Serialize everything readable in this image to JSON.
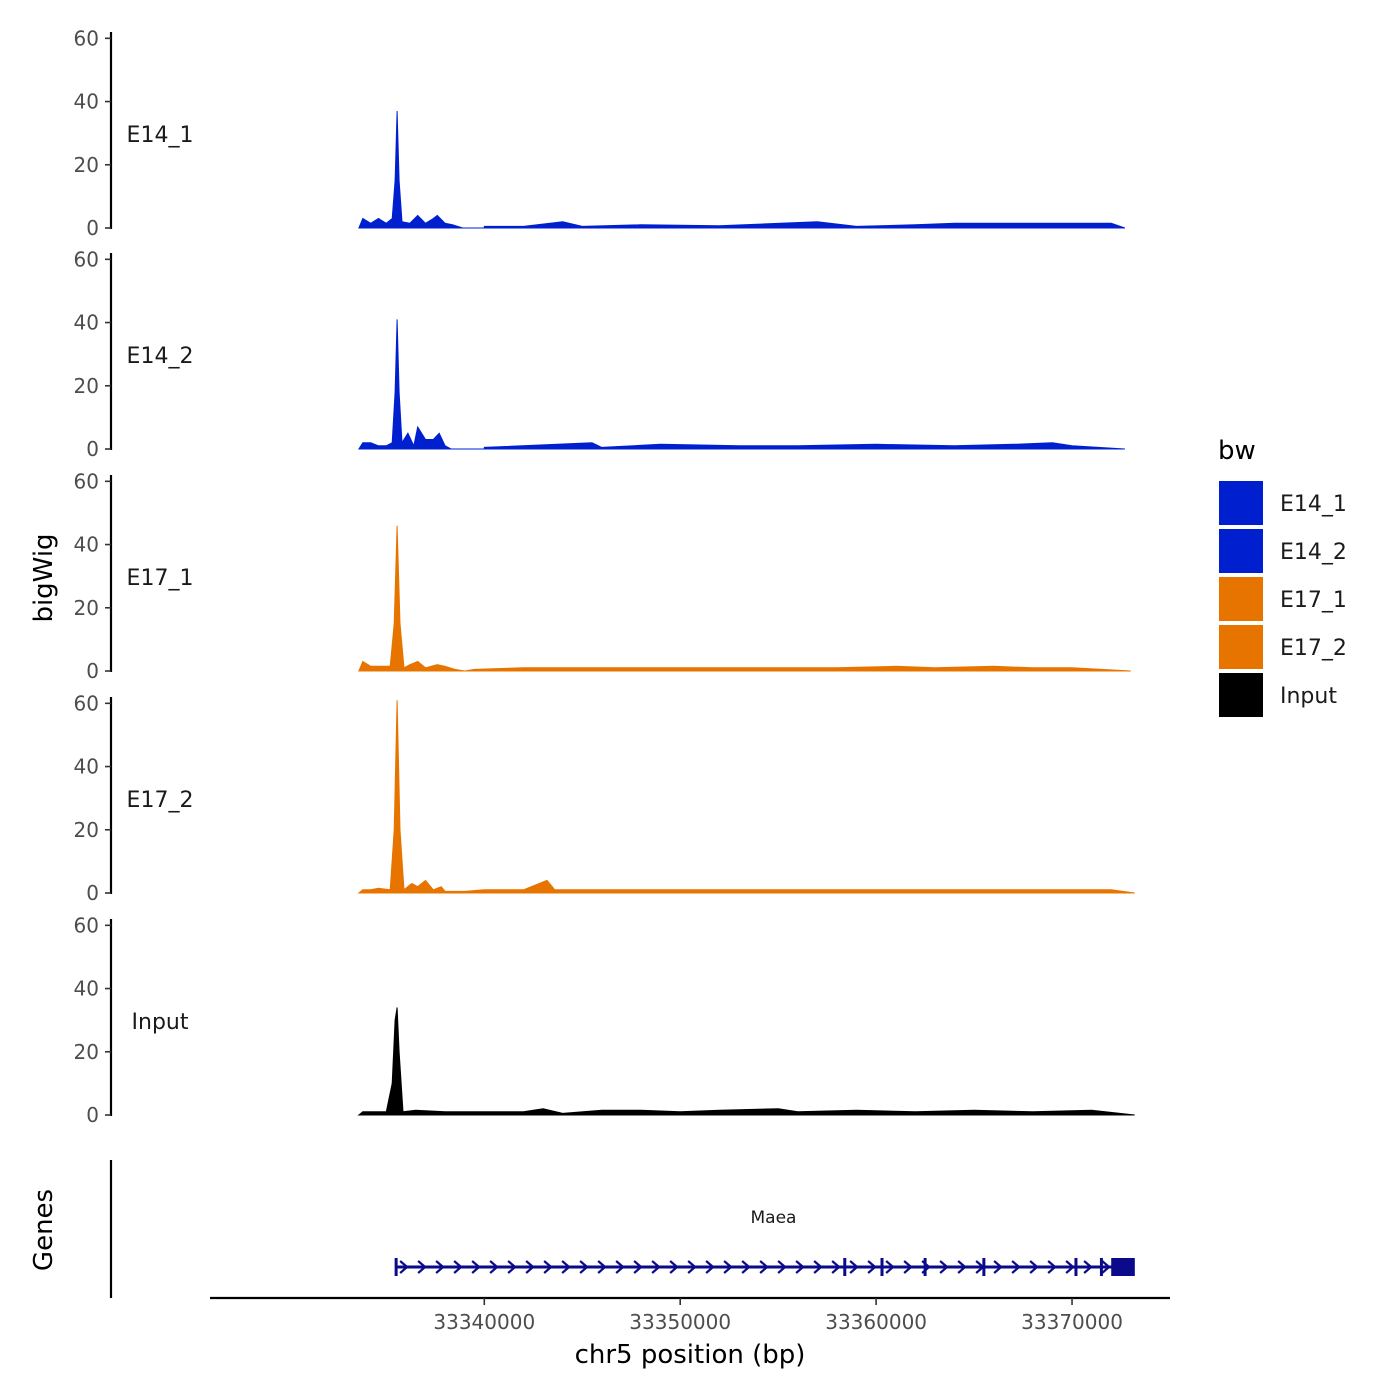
{
  "chart_data": {
    "type": "area",
    "ylabel": "bigWig",
    "xlabel": "chr5 position (bp)",
    "gene_track_label": "Genes",
    "ylim": [
      0,
      62
    ],
    "y_ticks": [
      "0",
      "20",
      "40",
      "60"
    ],
    "xlim": [
      33326000,
      33375000
    ],
    "x_ticks": [
      {
        "value": 33340000,
        "label": "33340000"
      },
      {
        "value": 33350000,
        "label": "33350000"
      },
      {
        "value": 33360000,
        "label": "33360000"
      },
      {
        "value": 33370000,
        "label": "33370000"
      }
    ],
    "legend": {
      "title": "bw",
      "entries": [
        {
          "label": "E14_1",
          "color": "#0020d0"
        },
        {
          "label": "E14_2",
          "color": "#0020d0"
        },
        {
          "label": "E17_1",
          "color": "#e87400"
        },
        {
          "label": "E17_2",
          "color": "#e87400"
        },
        {
          "label": "Input",
          "color": "#000000"
        }
      ]
    },
    "series": [
      {
        "name": "E14_1",
        "color": "#0020d0",
        "points": [
          [
            33333600,
            0
          ],
          [
            33333800,
            3
          ],
          [
            33334200,
            1.5
          ],
          [
            33334600,
            3
          ],
          [
            33335000,
            1.5
          ],
          [
            33335300,
            3
          ],
          [
            33335450,
            15
          ],
          [
            33335550,
            37
          ],
          [
            33335650,
            15
          ],
          [
            33335800,
            2
          ],
          [
            33336200,
            1.5
          ],
          [
            33336600,
            4
          ],
          [
            33337000,
            1.5
          ],
          [
            33337400,
            3
          ],
          [
            33337600,
            4
          ],
          [
            33338000,
            1.5
          ],
          [
            33338400,
            1
          ],
          [
            33338900,
            0
          ],
          [
            33340000,
            0
          ],
          [
            33340000,
            0.5
          ],
          [
            33342000,
            0.5
          ],
          [
            33344000,
            2
          ],
          [
            33345000,
            0.5
          ],
          [
            33348000,
            1
          ],
          [
            33352000,
            0.7
          ],
          [
            33357000,
            2
          ],
          [
            33359000,
            0.5
          ],
          [
            33362000,
            1
          ],
          [
            33364000,
            1.5
          ],
          [
            33368000,
            1.5
          ],
          [
            33371000,
            1.5
          ],
          [
            33372000,
            1.5
          ],
          [
            33372700,
            0
          ]
        ]
      },
      {
        "name": "E14_2",
        "color": "#0020d0",
        "points": [
          [
            33333600,
            0
          ],
          [
            33333800,
            2
          ],
          [
            33334200,
            2
          ],
          [
            33334600,
            1
          ],
          [
            33335000,
            1
          ],
          [
            33335300,
            2
          ],
          [
            33335450,
            18
          ],
          [
            33335550,
            41
          ],
          [
            33335650,
            18
          ],
          [
            33335800,
            2
          ],
          [
            33336100,
            5
          ],
          [
            33336400,
            1
          ],
          [
            33336600,
            7
          ],
          [
            33337000,
            3
          ],
          [
            33337400,
            3
          ],
          [
            33337700,
            5
          ],
          [
            33338000,
            1
          ],
          [
            33338300,
            0
          ],
          [
            33340000,
            0
          ],
          [
            33340000,
            0.5
          ],
          [
            33345500,
            2
          ],
          [
            33346000,
            0.5
          ],
          [
            33349000,
            1.5
          ],
          [
            33353000,
            1
          ],
          [
            33356000,
            1
          ],
          [
            33360000,
            1.5
          ],
          [
            33364000,
            1
          ],
          [
            33367000,
            1.5
          ],
          [
            33369000,
            2
          ],
          [
            33370000,
            1
          ],
          [
            33372700,
            0
          ]
        ]
      },
      {
        "name": "E17_1",
        "color": "#e87400",
        "points": [
          [
            33333600,
            0
          ],
          [
            33333800,
            3
          ],
          [
            33334200,
            1.5
          ],
          [
            33334600,
            1.5
          ],
          [
            33335200,
            1.5
          ],
          [
            33335400,
            15
          ],
          [
            33335550,
            46
          ],
          [
            33335700,
            15
          ],
          [
            33335900,
            1
          ],
          [
            33336200,
            2
          ],
          [
            33336600,
            3
          ],
          [
            33337000,
            1
          ],
          [
            33337600,
            2
          ],
          [
            33338000,
            1.5
          ],
          [
            33338500,
            0.5
          ],
          [
            33339000,
            0
          ],
          [
            33339500,
            0.5
          ],
          [
            33342000,
            1
          ],
          [
            33344000,
            1
          ],
          [
            33347000,
            1
          ],
          [
            33350000,
            1
          ],
          [
            33353000,
            1
          ],
          [
            33355000,
            1
          ],
          [
            33358000,
            1
          ],
          [
            33361000,
            1.5
          ],
          [
            33363000,
            1
          ],
          [
            33366000,
            1.5
          ],
          [
            33368000,
            1
          ],
          [
            33370000,
            1
          ],
          [
            33373000,
            0
          ]
        ]
      },
      {
        "name": "E17_2",
        "color": "#e87400",
        "points": [
          [
            33333600,
            0
          ],
          [
            33333800,
            1
          ],
          [
            33334200,
            1
          ],
          [
            33334600,
            1.5
          ],
          [
            33335200,
            1
          ],
          [
            33335400,
            20
          ],
          [
            33335550,
            61
          ],
          [
            33335700,
            20
          ],
          [
            33335900,
            1
          ],
          [
            33336300,
            3
          ],
          [
            33336600,
            2
          ],
          [
            33337000,
            4
          ],
          [
            33337400,
            1
          ],
          [
            33337800,
            2
          ],
          [
            33338000,
            0.5
          ],
          [
            33339000,
            0.5
          ],
          [
            33340000,
            1
          ],
          [
            33342000,
            1
          ],
          [
            33343200,
            4
          ],
          [
            33343600,
            1
          ],
          [
            33345000,
            1
          ],
          [
            33348000,
            1
          ],
          [
            33351000,
            1
          ],
          [
            33354000,
            1
          ],
          [
            33357000,
            1
          ],
          [
            33360000,
            1
          ],
          [
            33363000,
            1
          ],
          [
            33366000,
            1
          ],
          [
            33369000,
            1
          ],
          [
            33372000,
            1
          ],
          [
            33373200,
            0
          ]
        ]
      },
      {
        "name": "Input",
        "color": "#000000",
        "points": [
          [
            33333600,
            0
          ],
          [
            33333800,
            1
          ],
          [
            33334500,
            1
          ],
          [
            33335000,
            1
          ],
          [
            33335300,
            10
          ],
          [
            33335450,
            30
          ],
          [
            33335550,
            34
          ],
          [
            33335650,
            20
          ],
          [
            33335850,
            1
          ],
          [
            33336500,
            1.5
          ],
          [
            33338000,
            1
          ],
          [
            33340000,
            1
          ],
          [
            33342000,
            1
          ],
          [
            33343000,
            2
          ],
          [
            33344000,
            0.5
          ],
          [
            33346000,
            1.5
          ],
          [
            33348000,
            1.5
          ],
          [
            33350000,
            1
          ],
          [
            33352000,
            1.5
          ],
          [
            33355000,
            2
          ],
          [
            33356000,
            1
          ],
          [
            33359000,
            1.5
          ],
          [
            33362000,
            1
          ],
          [
            33365000,
            1.5
          ],
          [
            33368000,
            1
          ],
          [
            33371000,
            1.5
          ],
          [
            33373200,
            0
          ]
        ]
      }
    ],
    "gene": {
      "name": "Maea",
      "start": 33335500,
      "end": 33373000,
      "strand": "+",
      "exon_ticks": [
        33335500,
        33358400,
        33360300,
        33362500,
        33365500,
        33370200,
        33371500
      ],
      "utr_block": [
        33372000,
        33373000
      ]
    }
  }
}
